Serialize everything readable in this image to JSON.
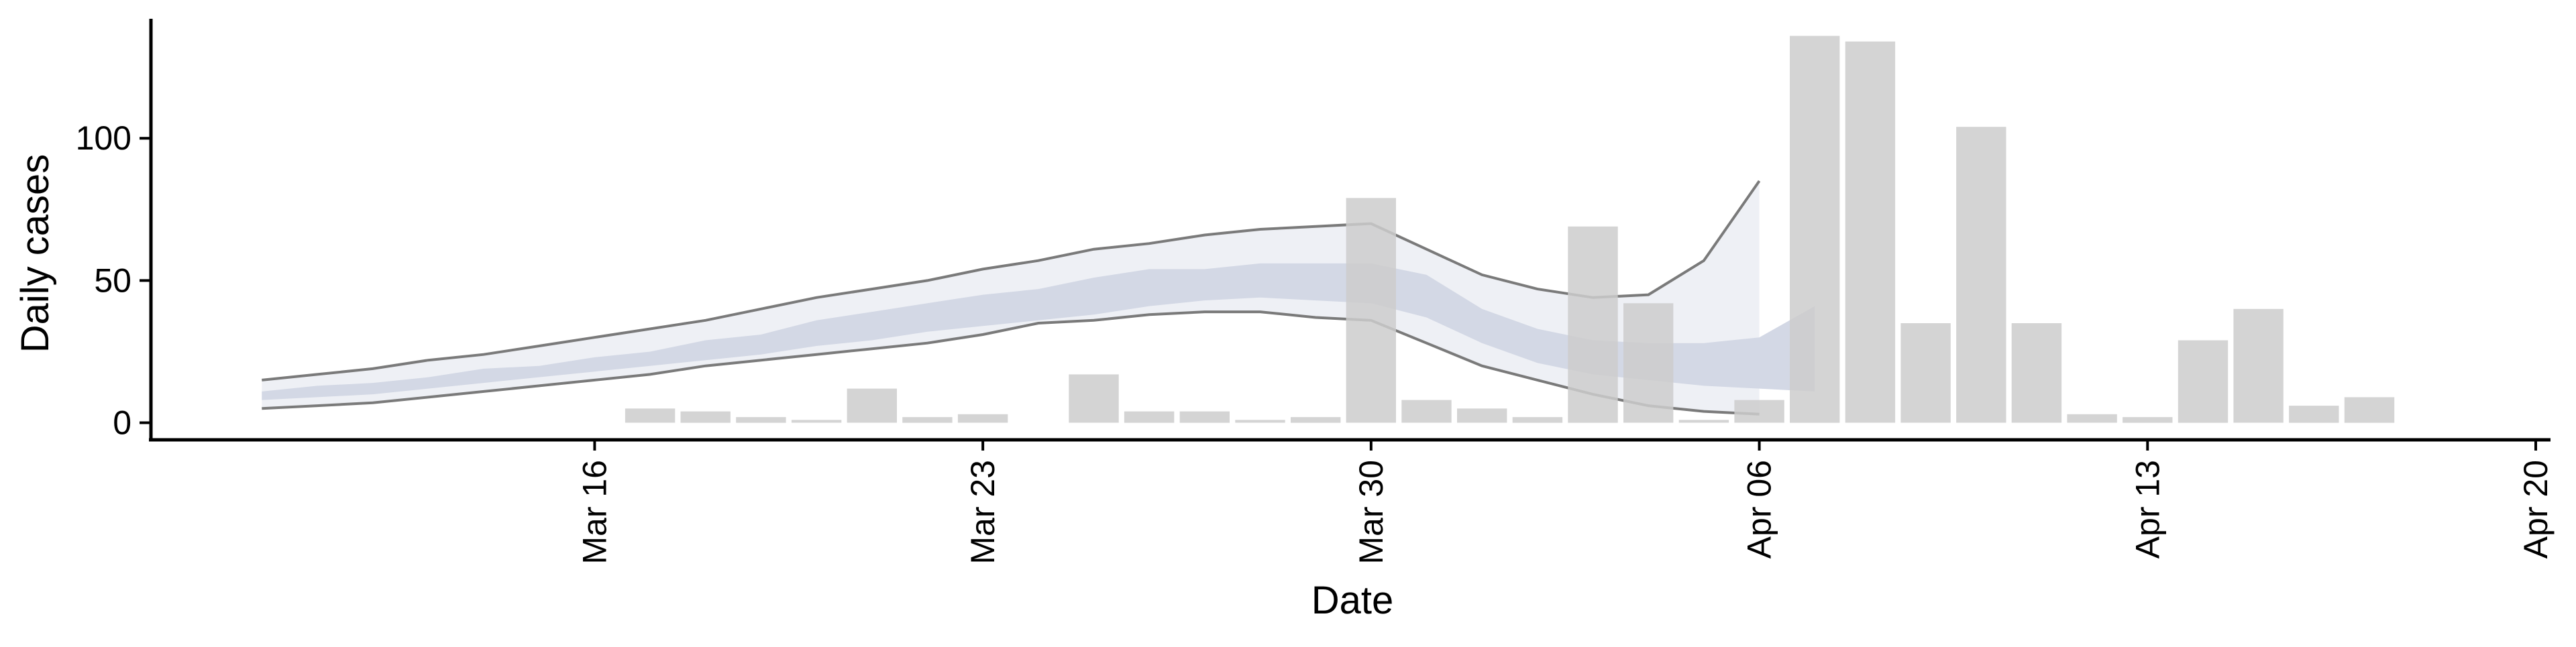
{
  "chart_data": {
    "type": "bar",
    "xlabel": "Date",
    "ylabel": "Daily cases",
    "ylim": [
      -6,
      142
    ],
    "xlim": [
      "2020-03-08",
      "2020-04-20"
    ],
    "grid": false,
    "legend": "none",
    "y_ticks": [
      0,
      50,
      100
    ],
    "x_ticks": [
      {
        "date": "2020-03-16",
        "label": "Mar 16"
      },
      {
        "date": "2020-03-23",
        "label": "Mar 23"
      },
      {
        "date": "2020-03-30",
        "label": "Mar 30"
      },
      {
        "date": "2020-04-06",
        "label": "Apr 06"
      },
      {
        "date": "2020-04-13",
        "label": "Apr 13"
      },
      {
        "date": "2020-04-20",
        "label": "Apr 20"
      }
    ],
    "bars": {
      "color": "#cccccc",
      "points": [
        {
          "date": "2020-03-17",
          "value": 5
        },
        {
          "date": "2020-03-18",
          "value": 4
        },
        {
          "date": "2020-03-19",
          "value": 2
        },
        {
          "date": "2020-03-20",
          "value": 1
        },
        {
          "date": "2020-03-21",
          "value": 12
        },
        {
          "date": "2020-03-22",
          "value": 2
        },
        {
          "date": "2020-03-23",
          "value": 3
        },
        {
          "date": "2020-03-25",
          "value": 17
        },
        {
          "date": "2020-03-26",
          "value": 4
        },
        {
          "date": "2020-03-27",
          "value": 4
        },
        {
          "date": "2020-03-28",
          "value": 1
        },
        {
          "date": "2020-03-29",
          "value": 2
        },
        {
          "date": "2020-03-30",
          "value": 79
        },
        {
          "date": "2020-03-31",
          "value": 8
        },
        {
          "date": "2020-04-01",
          "value": 5
        },
        {
          "date": "2020-04-02",
          "value": 2
        },
        {
          "date": "2020-04-03",
          "value": 69
        },
        {
          "date": "2020-04-04",
          "value": 42
        },
        {
          "date": "2020-04-05",
          "value": 1
        },
        {
          "date": "2020-04-06",
          "value": 8
        },
        {
          "date": "2020-04-07",
          "value": 136
        },
        {
          "date": "2020-04-08",
          "value": 134
        },
        {
          "date": "2020-04-09",
          "value": 35
        },
        {
          "date": "2020-04-10",
          "value": 104
        },
        {
          "date": "2020-04-11",
          "value": 35
        },
        {
          "date": "2020-04-12",
          "value": 3
        },
        {
          "date": "2020-04-13",
          "value": 2
        },
        {
          "date": "2020-04-14",
          "value": 29
        },
        {
          "date": "2020-04-15",
          "value": 40
        },
        {
          "date": "2020-04-16",
          "value": 6
        },
        {
          "date": "2020-04-17",
          "value": 9
        }
      ]
    },
    "bands": {
      "dates": [
        "2020-03-10",
        "2020-03-11",
        "2020-03-12",
        "2020-03-13",
        "2020-03-14",
        "2020-03-15",
        "2020-03-16",
        "2020-03-17",
        "2020-03-18",
        "2020-03-19",
        "2020-03-20",
        "2020-03-21",
        "2020-03-22",
        "2020-03-23",
        "2020-03-24",
        "2020-03-25",
        "2020-03-26",
        "2020-03-27",
        "2020-03-28",
        "2020-03-29",
        "2020-03-30",
        "2020-03-31",
        "2020-04-01",
        "2020-04-02",
        "2020-04-03",
        "2020-04-04",
        "2020-04-05",
        "2020-04-06",
        "2020-04-07",
        "2020-04-08"
      ],
      "outer_upper": [
        15,
        17,
        19,
        22,
        24,
        27,
        30,
        33,
        36,
        40,
        44,
        47,
        50,
        54,
        57,
        61,
        63,
        66,
        68,
        69,
        70,
        61,
        52,
        47,
        44,
        45,
        57,
        85,
        null,
        null
      ],
      "outer_lower": [
        5,
        6,
        7,
        9,
        11,
        13,
        15,
        17,
        20,
        22,
        24,
        26,
        28,
        31,
        35,
        36,
        38,
        39,
        39,
        37,
        36,
        28,
        20,
        15,
        10,
        6,
        4,
        3,
        null,
        null
      ],
      "inner_upper": [
        11,
        13,
        14,
        16,
        19,
        20,
        23,
        25,
        29,
        31,
        36,
        39,
        42,
        45,
        47,
        51,
        54,
        54,
        56,
        56,
        56,
        52,
        40,
        33,
        29,
        28,
        28,
        30,
        41,
        null
      ],
      "inner_lower": [
        8,
        9,
        10,
        12,
        14,
        16,
        18,
        20,
        22,
        24,
        27,
        29,
        32,
        34,
        36,
        38,
        41,
        43,
        44,
        43,
        42,
        37,
        28,
        21,
        17,
        15,
        13,
        12,
        11,
        null
      ],
      "outer_color": "#eef0f5",
      "inner_color": "#d3d8e5",
      "line_color": "#7a7a7a"
    }
  }
}
